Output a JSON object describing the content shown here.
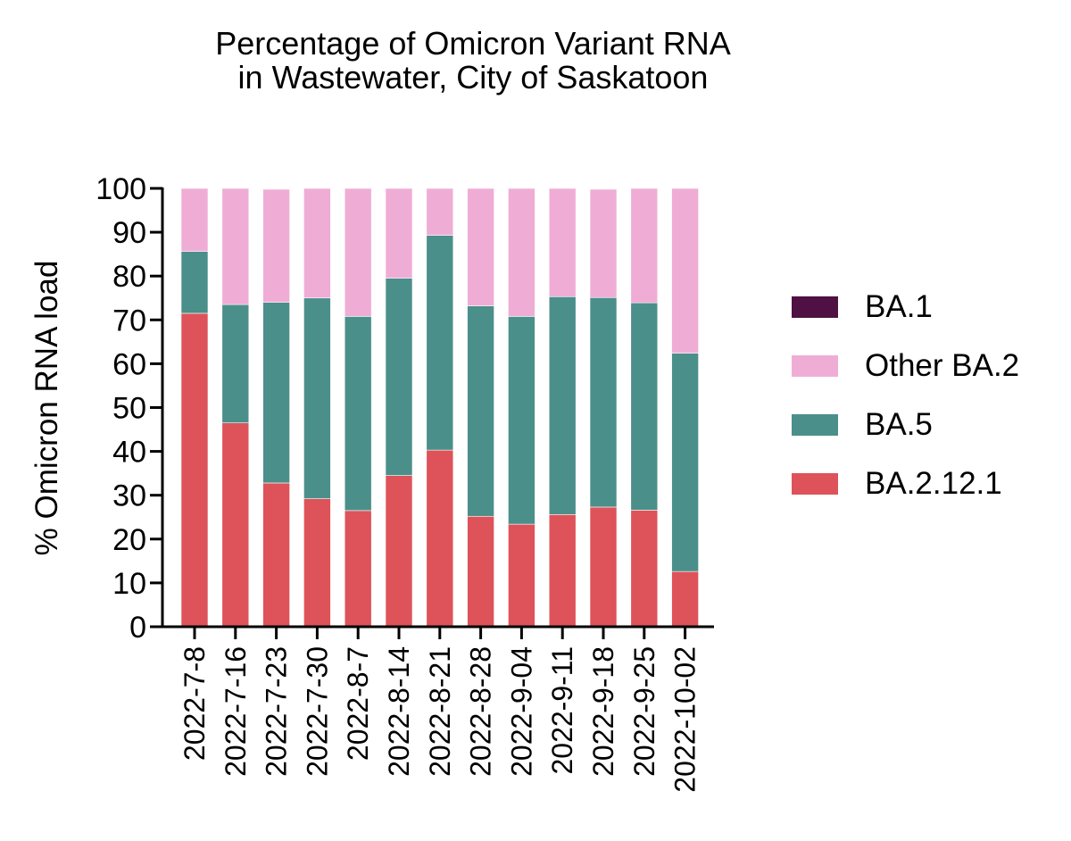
{
  "chart_data": {
    "type": "bar",
    "stacked": true,
    "title": [
      "Percentage of Omicron Variant RNA",
      "in Wastewater, City of Saskatoon"
    ],
    "ylabel": "% Omicron RNA load",
    "xlabel": "",
    "ylim": [
      0,
      100
    ],
    "yticks": [
      0,
      10,
      20,
      30,
      40,
      50,
      60,
      70,
      80,
      90,
      100
    ],
    "categories": [
      "2022-7-8",
      "2022-7-16",
      "2022-7-23",
      "2022-7-30",
      "2022-8-7",
      "2022-8-14",
      "2022-8-21",
      "2022-8-28",
      "2022-9-04",
      "2022-9-11",
      "2022-9-18",
      "2022-9-25",
      "2022-10-02"
    ],
    "series": [
      {
        "name": "BA.2.12.1",
        "color": "#dd5359",
        "values": [
          71.5,
          46.5,
          32.8,
          29.2,
          26.5,
          34.5,
          40.3,
          25.2,
          23.4,
          25.6,
          27.3,
          26.6,
          12.6
        ]
      },
      {
        "name": "BA.5",
        "color": "#4b8f8a",
        "values": [
          14.1,
          27.0,
          41.2,
          45.8,
          44.3,
          45.0,
          49.0,
          48.0,
          47.4,
          49.7,
          47.8,
          47.3,
          49.8
        ]
      },
      {
        "name": "Other BA.2",
        "color": "#efadd5",
        "values": [
          14.4,
          26.5,
          25.8,
          25.0,
          29.2,
          20.5,
          10.7,
          26.8,
          29.2,
          24.7,
          24.7,
          26.1,
          37.6
        ]
      },
      {
        "name": "BA.1",
        "color": "#4f1044",
        "values": [
          0,
          0,
          0,
          0,
          0,
          0,
          0,
          0,
          0,
          0,
          0,
          0,
          0
        ]
      }
    ],
    "legend_order": [
      "BA.1",
      "Other BA.2",
      "BA.5",
      "BA.2.12.1"
    ],
    "legend_position": "right",
    "grid": false
  }
}
